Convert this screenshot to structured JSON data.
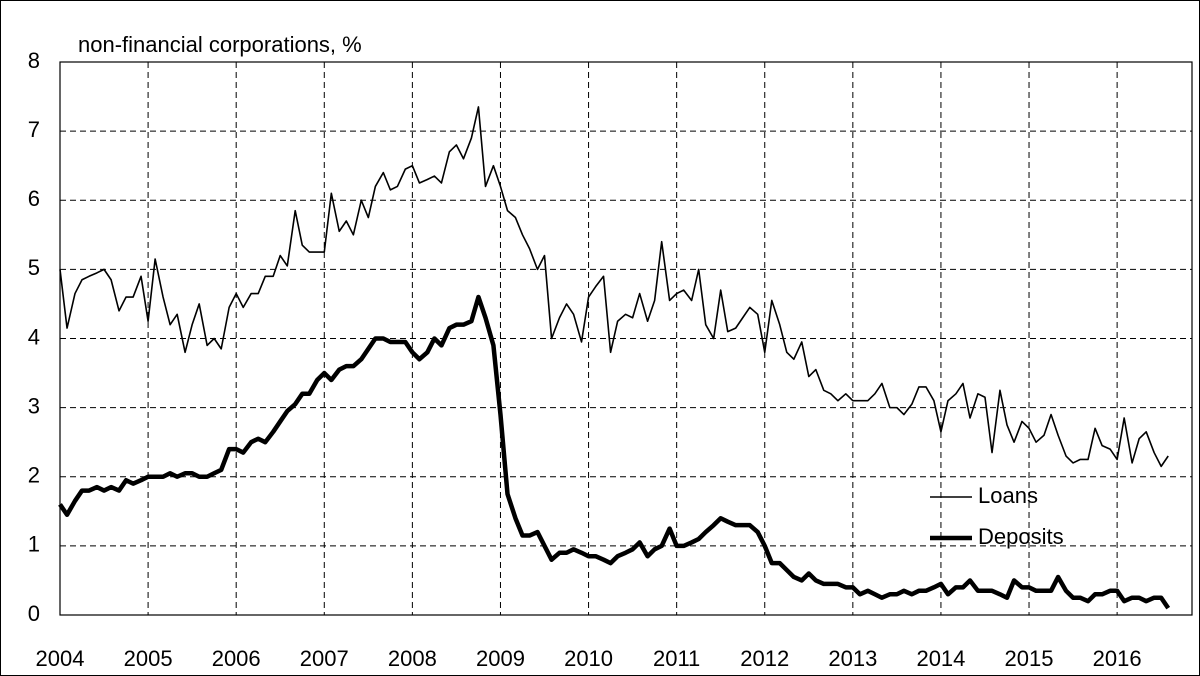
{
  "chart_data": {
    "type": "line",
    "title": "non-financial corporations, %",
    "x": [
      2004.0,
      2004.08,
      2004.17,
      2004.25,
      2004.33,
      2004.42,
      2004.5,
      2004.58,
      2004.67,
      2004.75,
      2004.83,
      2004.92,
      2005.0,
      2005.08,
      2005.17,
      2005.25,
      2005.33,
      2005.42,
      2005.5,
      2005.58,
      2005.67,
      2005.75,
      2005.83,
      2005.92,
      2006.0,
      2006.08,
      2006.17,
      2006.25,
      2006.33,
      2006.42,
      2006.5,
      2006.58,
      2006.67,
      2006.75,
      2006.83,
      2006.92,
      2007.0,
      2007.08,
      2007.17,
      2007.25,
      2007.33,
      2007.42,
      2007.5,
      2007.58,
      2007.67,
      2007.75,
      2007.83,
      2007.92,
      2008.0,
      2008.08,
      2008.17,
      2008.25,
      2008.33,
      2008.42,
      2008.5,
      2008.58,
      2008.67,
      2008.75,
      2008.83,
      2008.92,
      2009.0,
      2009.08,
      2009.17,
      2009.25,
      2009.33,
      2009.42,
      2009.5,
      2009.58,
      2009.67,
      2009.75,
      2009.83,
      2009.92,
      2010.0,
      2010.08,
      2010.17,
      2010.25,
      2010.33,
      2010.42,
      2010.5,
      2010.58,
      2010.67,
      2010.75,
      2010.83,
      2010.92,
      2011.0,
      2011.08,
      2011.17,
      2011.25,
      2011.33,
      2011.42,
      2011.5,
      2011.58,
      2011.67,
      2011.75,
      2011.83,
      2011.92,
      2012.0,
      2012.08,
      2012.17,
      2012.25,
      2012.33,
      2012.42,
      2012.5,
      2012.58,
      2012.67,
      2012.75,
      2012.83,
      2012.92,
      2013.0,
      2013.08,
      2013.17,
      2013.25,
      2013.33,
      2013.42,
      2013.5,
      2013.58,
      2013.67,
      2013.75,
      2013.83,
      2013.92,
      2014.0,
      2014.08,
      2014.17,
      2014.25,
      2014.33,
      2014.42,
      2014.5,
      2014.58,
      2014.67,
      2014.75,
      2014.83,
      2014.92,
      2015.0,
      2015.08,
      2015.17,
      2015.25,
      2015.33,
      2015.42,
      2015.5,
      2015.58,
      2015.67,
      2015.75,
      2015.83,
      2015.92,
      2016.0,
      2016.08,
      2016.17,
      2016.25,
      2016.33,
      2016.42,
      2016.5,
      2016.58
    ],
    "series": [
      {
        "name": "Loans",
        "color": "#000000",
        "width": 1.6,
        "values": [
          5.0,
          4.15,
          4.65,
          4.85,
          4.9,
          4.95,
          5.0,
          4.85,
          4.4,
          4.6,
          4.6,
          4.9,
          4.25,
          5.15,
          4.6,
          4.2,
          4.35,
          3.8,
          4.2,
          4.5,
          3.9,
          4.0,
          3.85,
          4.45,
          4.65,
          4.45,
          4.65,
          4.65,
          4.9,
          4.9,
          5.2,
          5.05,
          5.85,
          5.35,
          5.25,
          5.25,
          5.25,
          6.1,
          5.55,
          5.7,
          5.5,
          6.0,
          5.75,
          6.2,
          6.4,
          6.15,
          6.2,
          6.45,
          6.5,
          6.25,
          6.3,
          6.35,
          6.25,
          6.7,
          6.8,
          6.6,
          6.9,
          7.35,
          6.2,
          6.5,
          6.2,
          5.85,
          5.75,
          5.5,
          5.3,
          5.0,
          5.2,
          4.0,
          4.3,
          4.5,
          4.35,
          3.95,
          4.6,
          4.75,
          4.9,
          3.8,
          4.25,
          4.35,
          4.3,
          4.65,
          4.25,
          4.55,
          5.4,
          4.55,
          4.65,
          4.7,
          4.55,
          5.0,
          4.2,
          4.0,
          4.7,
          4.1,
          4.15,
          4.3,
          4.45,
          4.35,
          3.8,
          4.55,
          4.2,
          3.8,
          3.7,
          3.95,
          3.45,
          3.55,
          3.25,
          3.2,
          3.1,
          3.2,
          3.1,
          3.1,
          3.1,
          3.2,
          3.35,
          3.0,
          3.0,
          2.9,
          3.05,
          3.3,
          3.3,
          3.1,
          2.65,
          3.1,
          3.2,
          3.35,
          2.85,
          3.2,
          3.15,
          2.35,
          3.25,
          2.75,
          2.5,
          2.8,
          2.7,
          2.5,
          2.6,
          2.9,
          2.6,
          2.3,
          2.2,
          2.25,
          2.25,
          2.7,
          2.45,
          2.4,
          2.25,
          2.85,
          2.2,
          2.55,
          2.65,
          2.35,
          2.15,
          2.3
        ]
      },
      {
        "name": "Deposits",
        "color": "#000000",
        "width": 4.5,
        "values": [
          1.6,
          1.45,
          1.65,
          1.8,
          1.8,
          1.85,
          1.8,
          1.85,
          1.8,
          1.95,
          1.9,
          1.95,
          2.0,
          2.0,
          2.0,
          2.05,
          2.0,
          2.05,
          2.05,
          2.0,
          2.0,
          2.05,
          2.1,
          2.4,
          2.4,
          2.35,
          2.5,
          2.55,
          2.5,
          2.65,
          2.8,
          2.95,
          3.05,
          3.2,
          3.2,
          3.4,
          3.5,
          3.4,
          3.55,
          3.6,
          3.6,
          3.7,
          3.85,
          4.0,
          4.0,
          3.95,
          3.95,
          3.95,
          3.8,
          3.7,
          3.8,
          4.0,
          3.9,
          4.15,
          4.2,
          4.2,
          4.25,
          4.6,
          4.3,
          3.9,
          2.9,
          1.75,
          1.4,
          1.15,
          1.15,
          1.2,
          1.0,
          0.8,
          0.9,
          0.9,
          0.95,
          0.9,
          0.85,
          0.85,
          0.8,
          0.75,
          0.85,
          0.9,
          0.95,
          1.05,
          0.85,
          0.95,
          1.0,
          1.25,
          1.0,
          1.0,
          1.05,
          1.1,
          1.2,
          1.3,
          1.4,
          1.35,
          1.3,
          1.3,
          1.3,
          1.2,
          1.0,
          0.75,
          0.75,
          0.65,
          0.55,
          0.5,
          0.6,
          0.5,
          0.45,
          0.45,
          0.45,
          0.4,
          0.4,
          0.3,
          0.35,
          0.3,
          0.25,
          0.3,
          0.3,
          0.35,
          0.3,
          0.35,
          0.35,
          0.4,
          0.45,
          0.3,
          0.4,
          0.4,
          0.5,
          0.35,
          0.35,
          0.35,
          0.3,
          0.25,
          0.5,
          0.4,
          0.4,
          0.35,
          0.35,
          0.35,
          0.55,
          0.35,
          0.25,
          0.25,
          0.2,
          0.3,
          0.3,
          0.35,
          0.35,
          0.2,
          0.25,
          0.25,
          0.2,
          0.25,
          0.25,
          0.1
        ]
      }
    ],
    "xlim": [
      2004,
      2016.85
    ],
    "xticks": [
      2004,
      2005,
      2006,
      2007,
      2008,
      2009,
      2010,
      2011,
      2012,
      2013,
      2014,
      2015,
      2016
    ],
    "ylim": [
      0,
      8
    ],
    "yticks": [
      0,
      1,
      2,
      3,
      4,
      5,
      6,
      7,
      8
    ],
    "grid": true,
    "legend": "right"
  }
}
